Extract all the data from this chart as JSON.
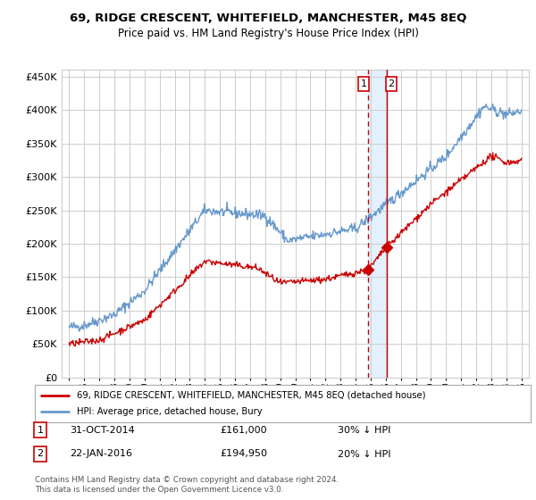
{
  "title": "69, RIDGE CRESCENT, WHITEFIELD, MANCHESTER, M45 8EQ",
  "subtitle": "Price paid vs. HM Land Registry's House Price Index (HPI)",
  "legend_label_red": "69, RIDGE CRESCENT, WHITEFIELD, MANCHESTER, M45 8EQ (detached house)",
  "legend_label_blue": "HPI: Average price, detached house, Bury",
  "table_rows": [
    {
      "num": "1",
      "date": "31-OCT-2014",
      "price": "£161,000",
      "hpi": "30% ↓ HPI"
    },
    {
      "num": "2",
      "date": "22-JAN-2016",
      "price": "£194,950",
      "hpi": "20% ↓ HPI"
    }
  ],
  "footnote": "Contains HM Land Registry data © Crown copyright and database right 2024.\nThis data is licensed under the Open Government Licence v3.0.",
  "vline1_year": 2014.83,
  "vline2_year": 2016.05,
  "marker1_year": 2014.83,
  "marker1_val": 161000,
  "marker2_year": 2016.05,
  "marker2_val": 194950,
  "ylim": [
    0,
    460000
  ],
  "yticks": [
    0,
    50000,
    100000,
    150000,
    200000,
    250000,
    300000,
    350000,
    400000,
    450000
  ],
  "red_color": "#cc0000",
  "blue_color": "#6699cc",
  "vline_color": "#cc0000",
  "shade_color": "#ddeeff",
  "background_color": "#ffffff",
  "grid_color": "#cccccc"
}
